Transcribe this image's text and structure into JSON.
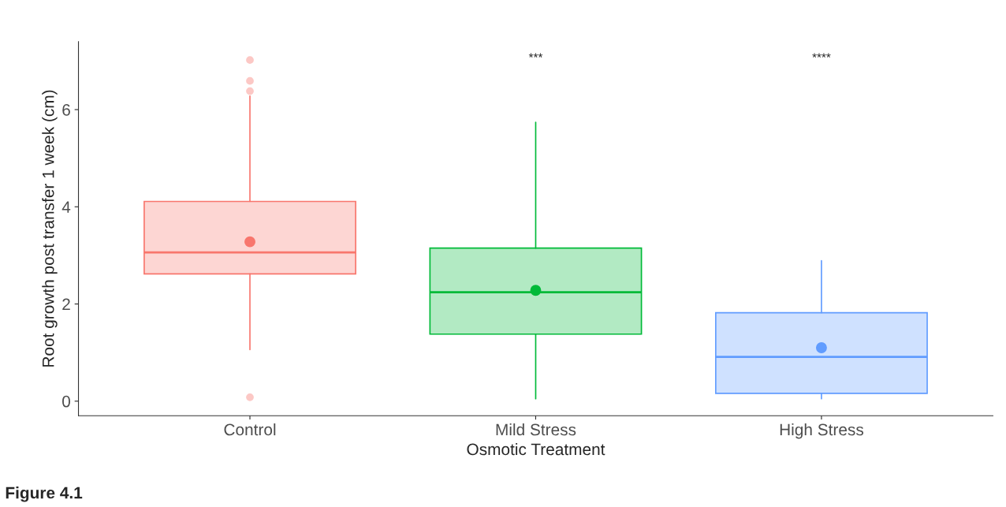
{
  "chart_data": {
    "type": "box",
    "xlabel": "Osmotic Treatment",
    "ylabel": "Root growth post transfer 1 week (cm)",
    "categories": [
      "Control",
      "Mild Stress",
      "High Stress"
    ],
    "colors": [
      "#f8766d",
      "#00ba38",
      "#619cff"
    ],
    "boxes": [
      {
        "low": 1.06,
        "q1": 2.62,
        "median": 3.06,
        "q3": 4.11,
        "high": 6.28,
        "mean": 3.28,
        "outliers": [
          7.02,
          6.59,
          6.38,
          0.08
        ]
      },
      {
        "low": 0.05,
        "q1": 1.38,
        "median": 2.24,
        "q3": 3.15,
        "high": 5.74,
        "mean": 2.28
      },
      {
        "low": 0.05,
        "q1": 0.16,
        "median": 0.91,
        "q3": 1.82,
        "high": 2.89,
        "mean": 1.1
      }
    ],
    "ylim": [
      -0.3,
      7.4
    ],
    "yticks": [
      0,
      2,
      4,
      6
    ],
    "grid": false,
    "annotations": [
      "***",
      "****",
      "Figure 4.1"
    ]
  }
}
